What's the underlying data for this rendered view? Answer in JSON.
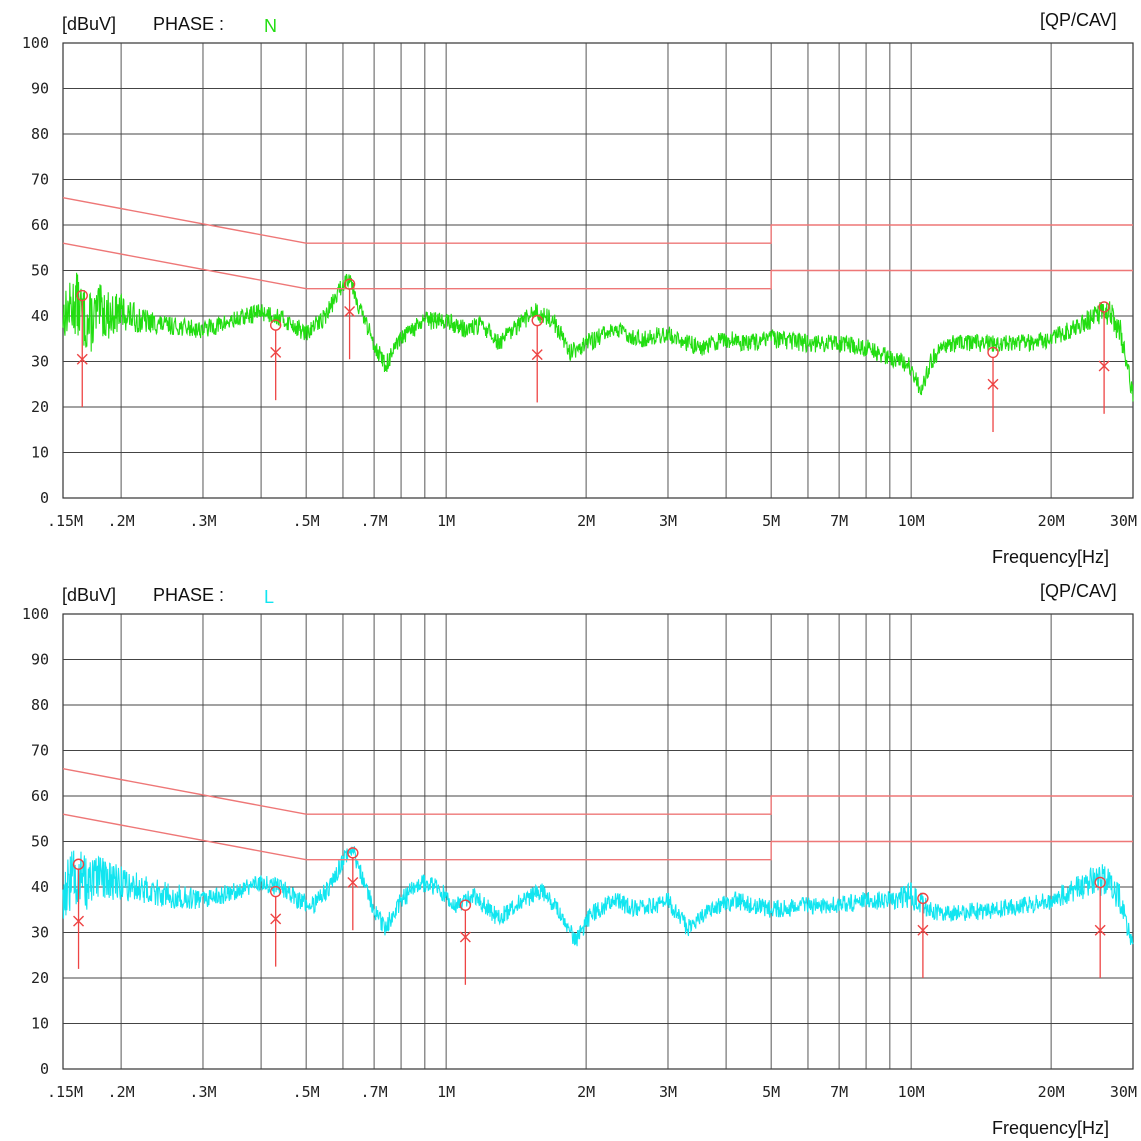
{
  "chart_data": [
    {
      "type": "line",
      "unit_label": "[dBuV]",
      "phase_label": "PHASE :",
      "phase_value": "N",
      "detector_label": "[QP/CAV]",
      "xlabel": "Frequency[Hz]",
      "x_scale": "log",
      "xlim_hz": [
        150000,
        30000000
      ],
      "ylim": [
        0,
        100
      ],
      "y_ticks": [
        "100",
        "90",
        "80",
        "70",
        "60",
        "50",
        "40",
        "30",
        "20",
        "10",
        "0"
      ],
      "x_ticks": [
        {
          "label": ".15M",
          "hz": 150000
        },
        {
          "label": ".2M",
          "hz": 200000
        },
        {
          "label": ".3M",
          "hz": 300000
        },
        {
          "label": ".5M",
          "hz": 500000
        },
        {
          "label": ".7M",
          "hz": 700000
        },
        {
          "label": "1M",
          "hz": 1000000
        },
        {
          "label": "2M",
          "hz": 2000000
        },
        {
          "label": "3M",
          "hz": 3000000
        },
        {
          "label": "5M",
          "hz": 5000000
        },
        {
          "label": "7M",
          "hz": 7000000
        },
        {
          "label": "10M",
          "hz": 10000000
        },
        {
          "label": "20M",
          "hz": 20000000
        },
        {
          "label": "30M",
          "hz": 30000000
        }
      ],
      "trace_color": "#22dd11",
      "limit_color": "#ee7777",
      "marker_color": "#ee4444",
      "limit_lines": [
        {
          "points": [
            [
              150000,
              66
            ],
            [
              500000,
              56
            ],
            [
              5000000,
              56
            ],
            [
              5000000,
              60
            ],
            [
              30000000,
              60
            ]
          ]
        },
        {
          "points": [
            [
              150000,
              56
            ],
            [
              500000,
              46
            ],
            [
              5000000,
              46
            ],
            [
              5000000,
              50
            ],
            [
              30000000,
              50
            ]
          ]
        }
      ],
      "series": [
        {
          "points": [
            [
              150000,
              40
            ],
            [
              160000,
              43
            ],
            [
              170000,
              38
            ],
            [
              180000,
              41
            ],
            [
              190000,
              40
            ],
            [
              200000,
              41
            ],
            [
              220000,
              39
            ],
            [
              250000,
              38
            ],
            [
              300000,
              37
            ],
            [
              350000,
              39
            ],
            [
              400000,
              41
            ],
            [
              430000,
              40
            ],
            [
              470000,
              38
            ],
            [
              500000,
              36
            ],
            [
              550000,
              40
            ],
            [
              600000,
              47
            ],
            [
              620000,
              49
            ],
            [
              650000,
              42
            ],
            [
              700000,
              34
            ],
            [
              740000,
              29
            ],
            [
              800000,
              35
            ],
            [
              900000,
              39
            ],
            [
              1000000,
              39
            ],
            [
              1100000,
              37
            ],
            [
              1200000,
              38
            ],
            [
              1300000,
              34
            ],
            [
              1400000,
              37
            ],
            [
              1550000,
              41
            ],
            [
              1700000,
              39
            ],
            [
              1850000,
              32
            ],
            [
              2000000,
              34
            ],
            [
              2300000,
              37
            ],
            [
              2600000,
              35
            ],
            [
              3000000,
              36
            ],
            [
              3500000,
              33
            ],
            [
              4000000,
              35
            ],
            [
              4500000,
              34
            ],
            [
              5000000,
              35
            ],
            [
              6000000,
              34
            ],
            [
              7000000,
              34
            ],
            [
              8000000,
              33
            ],
            [
              9000000,
              31
            ],
            [
              10000000,
              29
            ],
            [
              10500000,
              23
            ],
            [
              11000000,
              30
            ],
            [
              12000000,
              34
            ],
            [
              15000000,
              34
            ],
            [
              18000000,
              34
            ],
            [
              20000000,
              35
            ],
            [
              23000000,
              38
            ],
            [
              26000000,
              41
            ],
            [
              28000000,
              38
            ],
            [
              29000000,
              30
            ],
            [
              30000000,
              23
            ]
          ],
          "noise": [
            5,
            7,
            7,
            6,
            5,
            4,
            3,
            2,
            2,
            2,
            2,
            2,
            2,
            2,
            2,
            2,
            2,
            2,
            2,
            2,
            2,
            2,
            2,
            2,
            2,
            2,
            2,
            2,
            2,
            2,
            2,
            2,
            2,
            2,
            2,
            2,
            2,
            2,
            2,
            2,
            2,
            2,
            2,
            2,
            2,
            2,
            2,
            2,
            2,
            2,
            3,
            4,
            3,
            2
          ]
        }
      ],
      "markers": [
        {
          "freq_hz": 165000,
          "qp": 44.5,
          "cav": 30.5,
          "stem_bottom": 20
        },
        {
          "freq_hz": 430000,
          "qp": 38,
          "cav": 32,
          "stem_bottom": 21.5
        },
        {
          "freq_hz": 620000,
          "qp": 47,
          "cav": 41,
          "stem_bottom": 30.5
        },
        {
          "freq_hz": 1570000,
          "qp": 39,
          "cav": 31.5,
          "stem_bottom": 21
        },
        {
          "freq_hz": 15000000,
          "qp": 32,
          "cav": 25,
          "stem_bottom": 14.5
        },
        {
          "freq_hz": 26000000,
          "qp": 42,
          "cav": 29,
          "stem_bottom": 18.5
        }
      ]
    },
    {
      "type": "line",
      "unit_label": "[dBuV]",
      "phase_label": "PHASE :",
      "phase_value": "L",
      "detector_label": "[QP/CAV]",
      "xlabel": "Frequency[Hz]",
      "x_scale": "log",
      "xlim_hz": [
        150000,
        30000000
      ],
      "ylim": [
        0,
        100
      ],
      "y_ticks": [
        "100",
        "90",
        "80",
        "70",
        "60",
        "50",
        "40",
        "30",
        "20",
        "10",
        "0"
      ],
      "x_ticks": [
        {
          "label": ".15M",
          "hz": 150000
        },
        {
          "label": ".2M",
          "hz": 200000
        },
        {
          "label": ".3M",
          "hz": 300000
        },
        {
          "label": ".5M",
          "hz": 500000
        },
        {
          "label": ".7M",
          "hz": 700000
        },
        {
          "label": "1M",
          "hz": 1000000
        },
        {
          "label": "2M",
          "hz": 2000000
        },
        {
          "label": "3M",
          "hz": 3000000
        },
        {
          "label": "5M",
          "hz": 5000000
        },
        {
          "label": "7M",
          "hz": 7000000
        },
        {
          "label": "10M",
          "hz": 10000000
        },
        {
          "label": "20M",
          "hz": 20000000
        },
        {
          "label": "30M",
          "hz": 30000000
        }
      ],
      "trace_color": "#11e5f0",
      "limit_color": "#ee7777",
      "marker_color": "#ee4444",
      "limit_lines": [
        {
          "points": [
            [
              150000,
              66
            ],
            [
              500000,
              56
            ],
            [
              5000000,
              56
            ],
            [
              5000000,
              60
            ],
            [
              30000000,
              60
            ]
          ]
        },
        {
          "points": [
            [
              150000,
              56
            ],
            [
              500000,
              46
            ],
            [
              5000000,
              46
            ],
            [
              5000000,
              50
            ],
            [
              30000000,
              50
            ]
          ]
        }
      ],
      "series": [
        {
          "points": [
            [
              150000,
              38
            ],
            [
              160000,
              43
            ],
            [
              170000,
              40
            ],
            [
              180000,
              42
            ],
            [
              200000,
              41
            ],
            [
              230000,
              39
            ],
            [
              260000,
              38
            ],
            [
              300000,
              37
            ],
            [
              350000,
              39
            ],
            [
              400000,
              41
            ],
            [
              440000,
              40
            ],
            [
              480000,
              37
            ],
            [
              520000,
              36
            ],
            [
              560000,
              40
            ],
            [
              610000,
              47
            ],
            [
              630000,
              48
            ],
            [
              660000,
              42
            ],
            [
              700000,
              35
            ],
            [
              740000,
              31
            ],
            [
              800000,
              37
            ],
            [
              880000,
              41
            ],
            [
              950000,
              40
            ],
            [
              1050000,
              36
            ],
            [
              1150000,
              38
            ],
            [
              1300000,
              33
            ],
            [
              1450000,
              37
            ],
            [
              1600000,
              39
            ],
            [
              1750000,
              35
            ],
            [
              1900000,
              28
            ],
            [
              2050000,
              34
            ],
            [
              2300000,
              37
            ],
            [
              2600000,
              35
            ],
            [
              3000000,
              37
            ],
            [
              3300000,
              31
            ],
            [
              3700000,
              35
            ],
            [
              4200000,
              37
            ],
            [
              5000000,
              35
            ],
            [
              6000000,
              36
            ],
            [
              7000000,
              36
            ],
            [
              8000000,
              37
            ],
            [
              9000000,
              37
            ],
            [
              10000000,
              38
            ],
            [
              11000000,
              35
            ],
            [
              12000000,
              34
            ],
            [
              15000000,
              35
            ],
            [
              18000000,
              36
            ],
            [
              20000000,
              37
            ],
            [
              23000000,
              40
            ],
            [
              26000000,
              42
            ],
            [
              28000000,
              38
            ],
            [
              29000000,
              32
            ],
            [
              30000000,
              27
            ]
          ],
          "noise": [
            6,
            7,
            6,
            5,
            4,
            3,
            3,
            2,
            2,
            2,
            2,
            2,
            2,
            2,
            2,
            2,
            2,
            2,
            2,
            2,
            2,
            2,
            2,
            2,
            2,
            2,
            2,
            2,
            2,
            2,
            2,
            2,
            2,
            2,
            2,
            2,
            2,
            2,
            2,
            2,
            2,
            3,
            2,
            2,
            2,
            2,
            2,
            3,
            4,
            3,
            2,
            2
          ]
        }
      ],
      "markers": [
        {
          "freq_hz": 162000,
          "qp": 45,
          "cav": 32.5,
          "stem_bottom": 22
        },
        {
          "freq_hz": 430000,
          "qp": 39,
          "cav": 33,
          "stem_bottom": 22.5
        },
        {
          "freq_hz": 630000,
          "qp": 47.5,
          "cav": 41,
          "stem_bottom": 30.5
        },
        {
          "freq_hz": 1100000,
          "qp": 36,
          "cav": 29,
          "stem_bottom": 18.5
        },
        {
          "freq_hz": 10600000,
          "qp": 37.5,
          "cav": 30.5,
          "stem_bottom": 20
        },
        {
          "freq_hz": 25500000,
          "qp": 41,
          "cav": 30.5,
          "stem_bottom": 20
        }
      ]
    }
  ]
}
